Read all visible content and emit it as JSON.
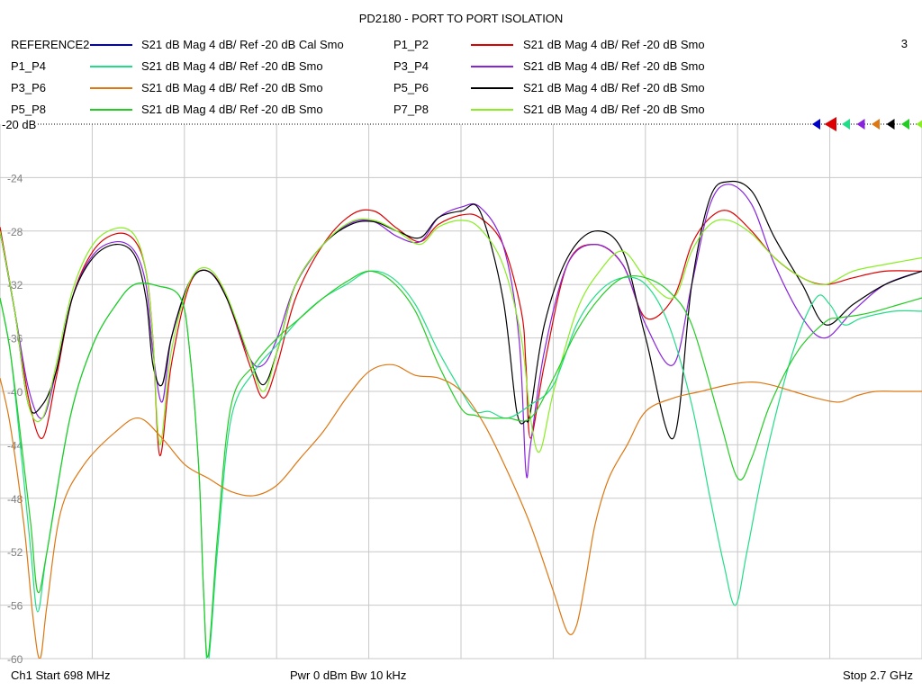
{
  "title": "PD2180 - PORT TO PORT ISOLATION",
  "page_number": "3",
  "legend": [
    {
      "name": "REFERENCE2",
      "desc": "S21  dB Mag  4 dB/ Ref -20 dB  Cal Smo",
      "color": "#0000cc"
    },
    {
      "name": "P1_P2",
      "desc": "S21  dB Mag  4 dB/ Ref -20 dB  Smo",
      "color": "#dd0000"
    },
    {
      "name": "P1_P4",
      "desc": "S21  dB Mag  4 dB/ Ref -20 dB  Smo",
      "color": "#22dd88"
    },
    {
      "name": "P3_P4",
      "desc": "S21  dB Mag  4 dB/ Ref -20 dB  Smo",
      "color": "#8822dd"
    },
    {
      "name": "P3_P6",
      "desc": "S21  dB Mag  4 dB/ Ref -20 dB  Smo",
      "color": "#dd7711"
    },
    {
      "name": "P5_P6",
      "desc": "S21  dB Mag  4 dB/ Ref -20 dB  Smo",
      "color": "#000000"
    },
    {
      "name": "P5_P8",
      "desc": "S21  dB Mag  4 dB/ Ref -20 dB  Smo",
      "color": "#22cc22"
    },
    {
      "name": "P7_P8",
      "desc": "S21  dB Mag  4 dB/ Ref -20 dB  Smo",
      "color": "#88ee22"
    }
  ],
  "footer": {
    "start": "Ch1  Start  698 MHz",
    "power": "Pwr  0 dBm  Bw  10 kHz",
    "stop": "Stop  2.7 GHz"
  },
  "chart_data": {
    "type": "line",
    "title": "PD2180 - PORT TO PORT ISOLATION",
    "xlabel": "",
    "ylabel": "",
    "x_unit": "MHz",
    "xlim": [
      698,
      2700
    ],
    "ylim": [
      -60,
      -20
    ],
    "reference_label": "-20 dB",
    "y_tick_labels": [
      "-24",
      "-28",
      "-32",
      "-36",
      "-40",
      "-44",
      "-48",
      "-52",
      "-56",
      "-60"
    ],
    "y_ticks": [
      -24,
      -28,
      -32,
      -36,
      -40,
      -44,
      -48,
      -52,
      -56,
      -60
    ],
    "grid": true,
    "x_divisions": 10,
    "series": [
      {
        "name": "P1_P2",
        "color": "#dd0000",
        "x": [
          698,
          730,
          760,
          790,
          820,
          855,
          900,
          950,
          990,
          1015,
          1030,
          1045,
          1070,
          1110,
          1150,
          1190,
          1240,
          1270,
          1300,
          1340,
          1400,
          1460,
          1510,
          1560,
          1610,
          1650,
          1700,
          1740,
          1790,
          1830,
          1840,
          1850,
          1880,
          1930,
          1990,
          2050,
          2100,
          2160,
          2200,
          2240,
          2280,
          2330,
          2380,
          2440,
          2490,
          2550,
          2620,
          2700
        ],
        "y": [
          -27.7,
          -34,
          -40.5,
          -43.5,
          -39,
          -33,
          -29.5,
          -28.2,
          -28.7,
          -31,
          -36,
          -44.8,
          -38,
          -32,
          -31,
          -33,
          -38,
          -40.5,
          -38,
          -33,
          -29,
          -26.8,
          -26.5,
          -27.8,
          -28.8,
          -27.5,
          -26.8,
          -27,
          -29,
          -34,
          -38,
          -43.5,
          -38,
          -30.5,
          -29,
          -30.5,
          -34.5,
          -33,
          -29,
          -27,
          -26.5,
          -28,
          -30,
          -31.5,
          -32,
          -31.5,
          -31,
          -31
        ]
      },
      {
        "name": "P3_P4",
        "color": "#8822dd",
        "x": [
          698,
          730,
          760,
          790,
          820,
          855,
          900,
          950,
          990,
          1015,
          1030,
          1050,
          1070,
          1110,
          1150,
          1190,
          1240,
          1270,
          1300,
          1340,
          1400,
          1460,
          1510,
          1560,
          1610,
          1650,
          1700,
          1740,
          1790,
          1825,
          1840,
          1850,
          1880,
          1930,
          1990,
          2050,
          2100,
          2160,
          2200,
          2240,
          2280,
          2330,
          2380,
          2440,
          2490,
          2550,
          2620,
          2700
        ],
        "y": [
          -28,
          -34,
          -39.8,
          -42,
          -38.5,
          -33,
          -29.8,
          -28.8,
          -29.5,
          -32,
          -37,
          -40.8,
          -36,
          -31.8,
          -31,
          -33,
          -37.5,
          -38,
          -36,
          -32,
          -29,
          -27.4,
          -27.3,
          -28.4,
          -28.8,
          -27,
          -26.2,
          -26.2,
          -29,
          -36,
          -46,
          -44,
          -37,
          -30.5,
          -29,
          -30.5,
          -35,
          -38,
          -32,
          -26,
          -24.5,
          -26,
          -30.5,
          -34.5,
          -36,
          -34,
          -32,
          -31
        ]
      },
      {
        "name": "P5_P6",
        "color": "#000000",
        "x": [
          698,
          730,
          760,
          790,
          820,
          855,
          900,
          950,
          990,
          1015,
          1030,
          1050,
          1070,
          1110,
          1150,
          1190,
          1240,
          1270,
          1300,
          1340,
          1400,
          1460,
          1510,
          1560,
          1610,
          1650,
          1700,
          1740,
          1790,
          1820,
          1840,
          1850,
          1880,
          1930,
          1990,
          2050,
          2100,
          2160,
          2200,
          2240,
          2280,
          2330,
          2380,
          2440,
          2490,
          2550,
          2620,
          2700
        ],
        "y": [
          -28,
          -34,
          -41,
          -41,
          -38.5,
          -33,
          -30,
          -29,
          -29.8,
          -33,
          -38,
          -39.5,
          -36,
          -31.8,
          -31,
          -33,
          -37.5,
          -39.5,
          -37,
          -32,
          -29,
          -27.5,
          -27.3,
          -28,
          -28.5,
          -27,
          -26.5,
          -26.5,
          -33,
          -41.5,
          -42.2,
          -41.5,
          -35,
          -30,
          -28,
          -29.5,
          -36,
          -43.5,
          -32,
          -25.5,
          -24.3,
          -25,
          -28.5,
          -32,
          -35,
          -33.5,
          -32,
          -31
        ]
      },
      {
        "name": "P7_P8",
        "color": "#88ee22",
        "x": [
          698,
          730,
          760,
          790,
          820,
          855,
          900,
          950,
          990,
          1015,
          1030,
          1045,
          1070,
          1110,
          1150,
          1190,
          1240,
          1270,
          1300,
          1340,
          1400,
          1460,
          1510,
          1560,
          1610,
          1650,
          1700,
          1740,
          1790,
          1830,
          1850,
          1870,
          1900,
          1950,
          2000,
          2050,
          2100,
          2160,
          2200,
          2240,
          2280,
          2330,
          2380,
          2440,
          2490,
          2550,
          2620,
          2700
        ],
        "y": [
          -28,
          -34,
          -41,
          -42,
          -38,
          -32.5,
          -29,
          -27.8,
          -28.3,
          -31,
          -36,
          -44,
          -37,
          -31.8,
          -30.8,
          -32.8,
          -37.5,
          -40,
          -37,
          -32,
          -29,
          -27.3,
          -27.2,
          -28,
          -29,
          -27.7,
          -27.2,
          -27.8,
          -30.5,
          -36,
          -42,
          -44.5,
          -40,
          -34,
          -31,
          -29.5,
          -31.5,
          -33,
          -29.5,
          -27.5,
          -27.2,
          -28.2,
          -30,
          -31.5,
          -32,
          -31,
          -30.5,
          -30
        ]
      },
      {
        "name": "P1_P4",
        "color": "#22dd88",
        "x": [
          698,
          720,
          745,
          765,
          780,
          800,
          850,
          900,
          950,
          990,
          1040,
          1090,
          1110,
          1130,
          1140,
          1150,
          1170,
          1200,
          1250,
          1300,
          1350,
          1400,
          1450,
          1500,
          1550,
          1600,
          1650,
          1700,
          1730,
          1760,
          1800,
          1850,
          1900,
          1950,
          2000,
          2050,
          2100,
          2150,
          2200,
          2240,
          2270,
          2295,
          2320,
          2360,
          2420,
          2470,
          2500,
          2530,
          2570,
          2640,
          2700
        ],
        "y": [
          -33,
          -37,
          -45,
          -52,
          -56.5,
          -52,
          -42,
          -36.5,
          -33.5,
          -32,
          -32.1,
          -33,
          -37,
          -46,
          -55,
          -60.3,
          -52,
          -42,
          -38.5,
          -36.5,
          -34.5,
          -33,
          -32,
          -31,
          -31.5,
          -33.5,
          -37,
          -40,
          -41.5,
          -41.5,
          -42,
          -41,
          -39.5,
          -35,
          -32.5,
          -31.5,
          -32,
          -35,
          -41,
          -48,
          -53,
          -56,
          -52,
          -45,
          -37,
          -33,
          -33.5,
          -35,
          -34.5,
          -34,
          -34
        ]
      },
      {
        "name": "P5_P8",
        "color": "#22cc22",
        "x": [
          698,
          720,
          745,
          765,
          780,
          800,
          850,
          900,
          950,
          990,
          1040,
          1090,
          1110,
          1130,
          1140,
          1150,
          1170,
          1200,
          1250,
          1300,
          1350,
          1400,
          1450,
          1500,
          1550,
          1600,
          1650,
          1700,
          1730,
          1760,
          1800,
          1850,
          1900,
          1950,
          2000,
          2050,
          2100,
          2150,
          2200,
          2260,
          2300,
          2330,
          2370,
          2430,
          2490,
          2520,
          2560,
          2600,
          2650,
          2700
        ],
        "y": [
          -33,
          -37,
          -44,
          -50,
          -55,
          -52,
          -42,
          -36.5,
          -33.5,
          -32,
          -32.1,
          -33,
          -37,
          -46,
          -55,
          -59.8,
          -51,
          -41,
          -38,
          -36,
          -34.5,
          -33,
          -31.8,
          -31,
          -31.8,
          -34,
          -38,
          -41.3,
          -41.8,
          -42,
          -42,
          -42,
          -39,
          -35.5,
          -33,
          -31.5,
          -31.5,
          -32.5,
          -35,
          -42,
          -46.5,
          -45,
          -41,
          -37,
          -34.8,
          -34.5,
          -34.3,
          -34,
          -33.5,
          -33
        ]
      },
      {
        "name": "P3_P6",
        "color": "#dd7711",
        "x": [
          698,
          720,
          750,
          770,
          785,
          800,
          830,
          880,
          950,
          1000,
          1050,
          1100,
          1150,
          1200,
          1250,
          1300,
          1350,
          1400,
          1450,
          1500,
          1550,
          1600,
          1650,
          1700,
          1750,
          1800,
          1850,
          1900,
          1930,
          1950,
          1970,
          1990,
          2020,
          2060,
          2100,
          2160,
          2220,
          2280,
          2330,
          2370,
          2420,
          2470,
          2520,
          2560,
          2600,
          2650,
          2700
        ],
        "y": [
          -39,
          -42.5,
          -50,
          -57,
          -60,
          -56,
          -49,
          -45.5,
          -43,
          -42,
          -43.5,
          -45.5,
          -46.5,
          -47.5,
          -47.8,
          -47,
          -45,
          -43,
          -40.5,
          -38.5,
          -38,
          -38.8,
          -39,
          -40,
          -42.5,
          -46,
          -50,
          -55,
          -58,
          -57.5,
          -54,
          -50,
          -46.5,
          -44,
          -41.5,
          -40.5,
          -40,
          -39.5,
          -39.3,
          -39.5,
          -40,
          -40.5,
          -40.8,
          -40.3,
          -40,
          -40,
          -40
        ]
      }
    ],
    "markers": [
      "#0000cc",
      "#dd0000",
      "#22dd88",
      "#8822dd",
      "#dd7711",
      "#000000",
      "#22cc22",
      "#88ee22"
    ]
  }
}
